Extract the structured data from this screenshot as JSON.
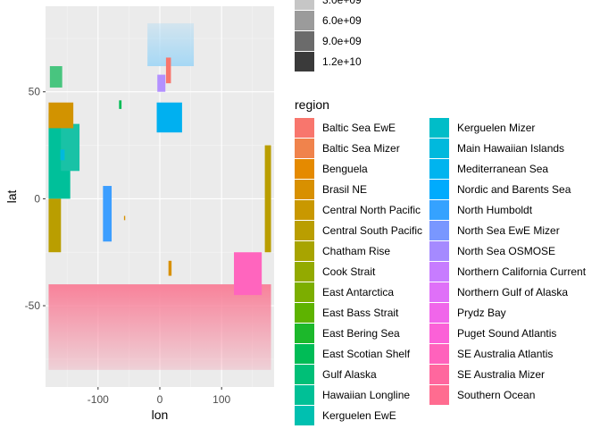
{
  "chart_data": {
    "type": "heatmap",
    "xlabel": "lon",
    "ylabel": "lat",
    "xlim": [
      -185,
      185
    ],
    "ylim": [
      -88,
      90
    ],
    "x_ticks": [
      {
        "value": -100,
        "label": "-100"
      },
      {
        "value": 0,
        "label": "0"
      },
      {
        "value": 100,
        "label": "100"
      }
    ],
    "y_ticks": [
      {
        "value": -50,
        "label": "-50"
      },
      {
        "value": 0,
        "label": "0"
      },
      {
        "value": 50,
        "label": "50"
      }
    ],
    "grid": true,
    "alpha_legend": {
      "entries": [
        {
          "label": "3.0e+09",
          "color": "#c6c6c6"
        },
        {
          "label": "6.0e+09",
          "color": "#9b9b9b"
        },
        {
          "label": "9.0e+09",
          "color": "#6b6b6b"
        },
        {
          "label": "1.2e+10",
          "color": "#3a3a3a"
        }
      ]
    },
    "region_legend": {
      "title": "region",
      "entries": [
        {
          "label": "Baltic Sea EwE",
          "color": "#F8766D"
        },
        {
          "label": "Baltic Sea Mizer",
          "color": "#F0834C"
        },
        {
          "label": "Benguela",
          "color": "#E58A00"
        },
        {
          "label": "Brasil NE",
          "color": "#D89000"
        },
        {
          "label": "Central North Pacific",
          "color": "#C99800"
        },
        {
          "label": "Central South Pacific",
          "color": "#BA9E00"
        },
        {
          "label": "Chatham Rise",
          "color": "#A8A400"
        },
        {
          "label": "Cook Strait",
          "color": "#93AA00"
        },
        {
          "label": "East Antarctica",
          "color": "#7CAE00"
        },
        {
          "label": "East Bass Strait",
          "color": "#5EB300"
        },
        {
          "label": "East Bering Sea",
          "color": "#1CB82B"
        },
        {
          "label": "East Scotian Shelf",
          "color": "#00BC56"
        },
        {
          "label": "Gulf Alaska",
          "color": "#00BF77"
        },
        {
          "label": "Hawaiian Longline",
          "color": "#00C096"
        },
        {
          "label": "Kerguelen EwE",
          "color": "#00C0B0"
        },
        {
          "label": "Kerguelen Mizer",
          "color": "#00BDC8"
        },
        {
          "label": "Main Hawaiian Islands",
          "color": "#00B9DD"
        },
        {
          "label": "Mediterranean Sea",
          "color": "#00B4EF"
        },
        {
          "label": "Nordic and Barents Sea",
          "color": "#00ABFD"
        },
        {
          "label": "North Humboldt",
          "color": "#35A2FF"
        },
        {
          "label": "North Sea EwE Mizer",
          "color": "#7997FF"
        },
        {
          "label": "North Sea OSMOSE",
          "color": "#A58AFF"
        },
        {
          "label": "Northern California Current",
          "color": "#C77CFF"
        },
        {
          "label": "Northern Gulf of Alaska",
          "color": "#DF70F8"
        },
        {
          "label": "Prydz Bay",
          "color": "#F066EA"
        },
        {
          "label": "Puget Sound Atlantis",
          "color": "#FB61D7"
        },
        {
          "label": "SE Australia Atlantis",
          "color": "#FF62BC"
        },
        {
          "label": "SE Australia Mizer",
          "color": "#FF679E"
        },
        {
          "label": "Southern Ocean",
          "color": "#FF6C90"
        }
      ]
    },
    "regions": [
      {
        "name": "Southern Ocean",
        "color": "#F8829A",
        "lon": [
          -180,
          180
        ],
        "lat": [
          -80,
          -40
        ],
        "fade": "down"
      },
      {
        "name": "Nordic and Barents Sea",
        "color": "#A6D8F5",
        "lon": [
          -20,
          55
        ],
        "lat": [
          62,
          82
        ],
        "fade": "up"
      },
      {
        "name": "Gulf Alaska",
        "color": "#00C09A",
        "lon": [
          -180,
          -145
        ],
        "lat": [
          0,
          40
        ]
      },
      {
        "name": "Hawaiian Longline",
        "color": "#19C2A6",
        "lon": [
          -160,
          -130
        ],
        "lat": [
          13,
          35
        ]
      },
      {
        "name": "Central North Pacific",
        "color": "#D29300",
        "lon": [
          -180,
          -140
        ],
        "lat": [
          33,
          45
        ]
      },
      {
        "name": "Main Hawaiian Islands",
        "color": "#00B9DD",
        "lon": [
          -161,
          -154
        ],
        "lat": [
          18,
          23
        ]
      },
      {
        "name": "North Humboldt",
        "color": "#3C9EFF",
        "lon": [
          -92,
          -78
        ],
        "lat": [
          -20,
          6
        ]
      },
      {
        "name": "Mediterranean Sea",
        "color": "#00B0F0",
        "lon": [
          -5,
          36
        ],
        "lat": [
          31,
          45
        ]
      },
      {
        "name": "North Sea EwE Mizer",
        "color": "#B390FF",
        "lon": [
          -4,
          9
        ],
        "lat": [
          50,
          58
        ]
      },
      {
        "name": "Baltic Sea EwE",
        "color": "#F8766D",
        "lon": [
          10,
          18
        ],
        "lat": [
          54,
          66
        ]
      },
      {
        "name": "East Bering Sea",
        "color": "#48C57F",
        "lon": [
          -178,
          -158
        ],
        "lat": [
          52,
          62
        ]
      },
      {
        "name": "Benguela",
        "color": "#D89000",
        "lon": [
          14,
          19
        ],
        "lat": [
          -36,
          -29
        ]
      },
      {
        "name": "SE Australia Atlantis",
        "color": "#FF65BE",
        "lon": [
          120,
          165
        ],
        "lat": [
          -45,
          -25
        ]
      },
      {
        "name": "Brasil NE",
        "color": "#D89000",
        "lon": [
          -58,
          -56
        ],
        "lat": [
          -10,
          -8
        ]
      },
      {
        "name": "Central South Pacific",
        "color": "#BA9E00",
        "lon": [
          170,
          180
        ],
        "lat": [
          -25,
          25
        ]
      },
      {
        "name": "Central South Pacific",
        "color": "#BA9E00",
        "lon": [
          -180,
          -160
        ],
        "lat": [
          -25,
          0
        ]
      },
      {
        "name": "East Scotian Shelf",
        "color": "#00BC56",
        "lon": [
          -66,
          -62
        ],
        "lat": [
          42,
          46
        ]
      }
    ]
  }
}
